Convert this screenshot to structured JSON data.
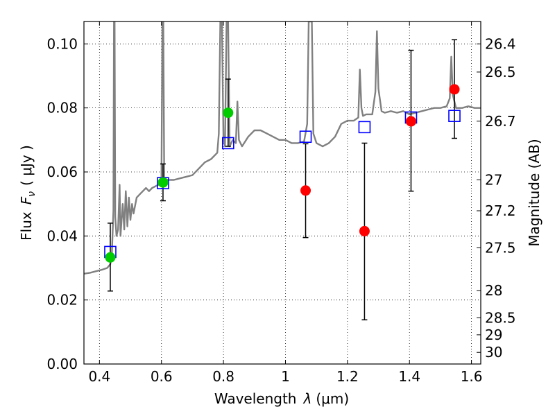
{
  "chart_data": {
    "type": "scatter",
    "xlabel_prefix": "Wavelength",
    "xlabel_symbol": "λ",
    "xlabel_unit": "(μm)",
    "ylabel_prefix": "Flux",
    "ylabel_symbol": "F",
    "ylabel_sub": "ν",
    "ylabel_unit": "( μJy )",
    "y2label": "Magnitude (AB)",
    "xlim": [
      0.35,
      1.63
    ],
    "ylim": [
      0.0,
      0.107
    ],
    "grid": true,
    "x_ticks": [
      {
        "value": 0.4,
        "label": "0.4"
      },
      {
        "value": 0.6,
        "label": "0.6"
      },
      {
        "value": 0.8,
        "label": "0.8"
      },
      {
        "value": 1.0,
        "label": "1"
      },
      {
        "value": 1.2,
        "label": "1.2"
      },
      {
        "value": 1.4,
        "label": "1.4"
      },
      {
        "value": 1.6,
        "label": "1.6"
      }
    ],
    "y_ticks": [
      {
        "value": 0.0,
        "label": "0.00"
      },
      {
        "value": 0.02,
        "label": "0.02"
      },
      {
        "value": 0.04,
        "label": "0.04"
      },
      {
        "value": 0.06,
        "label": "0.06"
      },
      {
        "value": 0.08,
        "label": "0.08"
      },
      {
        "value": 0.1,
        "label": "0.10"
      }
    ],
    "mag_ticks": [
      {
        "value": 26.4,
        "label": "26.4"
      },
      {
        "value": 26.5,
        "label": "26.5"
      },
      {
        "value": 26.7,
        "label": "26.7"
      },
      {
        "value": 27.0,
        "label": "27"
      },
      {
        "value": 27.2,
        "label": "27.2"
      },
      {
        "value": 27.5,
        "label": "27.5"
      },
      {
        "value": 28.0,
        "label": "28"
      },
      {
        "value": 28.5,
        "label": "28.5"
      },
      {
        "value": 29.0,
        "label": "29"
      },
      {
        "value": 30.0,
        "label": "30"
      }
    ],
    "series": [
      {
        "name": "model spectrum",
        "kind": "line",
        "color": "#808080",
        "points": [
          [
            0.35,
            0.0282
          ],
          [
            0.37,
            0.0285
          ],
          [
            0.39,
            0.029
          ],
          [
            0.41,
            0.0295
          ],
          [
            0.425,
            0.03
          ],
          [
            0.435,
            0.0312
          ],
          [
            0.44,
            0.034
          ],
          [
            0.445,
            0.048
          ],
          [
            0.447,
            0.107
          ],
          [
            0.449,
            0.107
          ],
          [
            0.451,
            0.046
          ],
          [
            0.455,
            0.04
          ],
          [
            0.46,
            0.042
          ],
          [
            0.465,
            0.056
          ],
          [
            0.468,
            0.04
          ],
          [
            0.475,
            0.05
          ],
          [
            0.48,
            0.042
          ],
          [
            0.485,
            0.054
          ],
          [
            0.49,
            0.043
          ],
          [
            0.495,
            0.052
          ],
          [
            0.5,
            0.045
          ],
          [
            0.505,
            0.05
          ],
          [
            0.51,
            0.047
          ],
          [
            0.52,
            0.052
          ],
          [
            0.53,
            0.053
          ],
          [
            0.54,
            0.054
          ],
          [
            0.55,
            0.055
          ],
          [
            0.56,
            0.054
          ],
          [
            0.57,
            0.055
          ],
          [
            0.58,
            0.0555
          ],
          [
            0.59,
            0.056
          ],
          [
            0.6,
            0.057
          ],
          [
            0.603,
            0.107
          ],
          [
            0.606,
            0.107
          ],
          [
            0.609,
            0.058
          ],
          [
            0.62,
            0.0575
          ],
          [
            0.64,
            0.0575
          ],
          [
            0.66,
            0.058
          ],
          [
            0.68,
            0.0585
          ],
          [
            0.7,
            0.059
          ],
          [
            0.72,
            0.061
          ],
          [
            0.74,
            0.063
          ],
          [
            0.76,
            0.064
          ],
          [
            0.78,
            0.066
          ],
          [
            0.785,
            0.072
          ],
          [
            0.79,
            0.107
          ],
          [
            0.795,
            0.107
          ],
          [
            0.8,
            0.07
          ],
          [
            0.805,
            0.068
          ],
          [
            0.81,
            0.107
          ],
          [
            0.815,
            0.107
          ],
          [
            0.82,
            0.068
          ],
          [
            0.83,
            0.07
          ],
          [
            0.84,
            0.069
          ],
          [
            0.845,
            0.082
          ],
          [
            0.85,
            0.07
          ],
          [
            0.86,
            0.068
          ],
          [
            0.88,
            0.071
          ],
          [
            0.9,
            0.073
          ],
          [
            0.92,
            0.073
          ],
          [
            0.94,
            0.072
          ],
          [
            0.96,
            0.071
          ],
          [
            0.98,
            0.07
          ],
          [
            1.0,
            0.07
          ],
          [
            1.02,
            0.069
          ],
          [
            1.04,
            0.069
          ],
          [
            1.06,
            0.0695
          ],
          [
            1.07,
            0.075
          ],
          [
            1.075,
            0.107
          ],
          [
            1.085,
            0.107
          ],
          [
            1.09,
            0.072
          ],
          [
            1.1,
            0.069
          ],
          [
            1.12,
            0.068
          ],
          [
            1.14,
            0.069
          ],
          [
            1.16,
            0.071
          ],
          [
            1.18,
            0.075
          ],
          [
            1.2,
            0.076
          ],
          [
            1.22,
            0.076
          ],
          [
            1.235,
            0.077
          ],
          [
            1.24,
            0.092
          ],
          [
            1.245,
            0.08
          ],
          [
            1.25,
            0.0775
          ],
          [
            1.26,
            0.078
          ],
          [
            1.28,
            0.078
          ],
          [
            1.29,
            0.085
          ],
          [
            1.295,
            0.104
          ],
          [
            1.3,
            0.086
          ],
          [
            1.31,
            0.079
          ],
          [
            1.32,
            0.0785
          ],
          [
            1.34,
            0.079
          ],
          [
            1.36,
            0.0785
          ],
          [
            1.38,
            0.079
          ],
          [
            1.4,
            0.078
          ],
          [
            1.42,
            0.0785
          ],
          [
            1.44,
            0.079
          ],
          [
            1.46,
            0.0795
          ],
          [
            1.48,
            0.08
          ],
          [
            1.5,
            0.08
          ],
          [
            1.52,
            0.0805
          ],
          [
            1.53,
            0.083
          ],
          [
            1.535,
            0.096
          ],
          [
            1.54,
            0.084
          ],
          [
            1.55,
            0.08
          ],
          [
            1.57,
            0.08
          ],
          [
            1.59,
            0.0805
          ],
          [
            1.61,
            0.08
          ],
          [
            1.63,
            0.08
          ]
        ]
      },
      {
        "name": "model photometry",
        "kind": "open-square",
        "color": "#0000ff",
        "points": [
          [
            0.435,
            0.035
          ],
          [
            0.605,
            0.0565
          ],
          [
            0.815,
            0.069
          ],
          [
            1.065,
            0.071
          ],
          [
            1.255,
            0.074
          ],
          [
            1.405,
            0.077
          ],
          [
            1.545,
            0.0775
          ]
        ]
      },
      {
        "name": "detections",
        "kind": "filled-circle",
        "color": "#00cc00",
        "points": [
          [
            0.435,
            0.0333
          ],
          [
            0.605,
            0.0567
          ],
          [
            0.815,
            0.0785
          ]
        ]
      },
      {
        "name": "upper points",
        "kind": "filled-circle",
        "color": "#ff0000",
        "points": [
          [
            1.065,
            0.0542
          ],
          [
            1.255,
            0.0415
          ],
          [
            1.405,
            0.0758
          ],
          [
            1.545,
            0.0858
          ]
        ]
      },
      {
        "name": "error bars",
        "kind": "errorbar",
        "color": "#000000",
        "bars": [
          [
            0.435,
            0.0228,
            0.044
          ],
          [
            0.605,
            0.051,
            0.0625
          ],
          [
            0.815,
            0.068,
            0.089
          ],
          [
            1.065,
            0.0395,
            0.0688
          ],
          [
            1.255,
            0.0138,
            0.069
          ],
          [
            1.405,
            0.054,
            0.098
          ],
          [
            1.545,
            0.0705,
            0.1013
          ]
        ]
      }
    ]
  }
}
